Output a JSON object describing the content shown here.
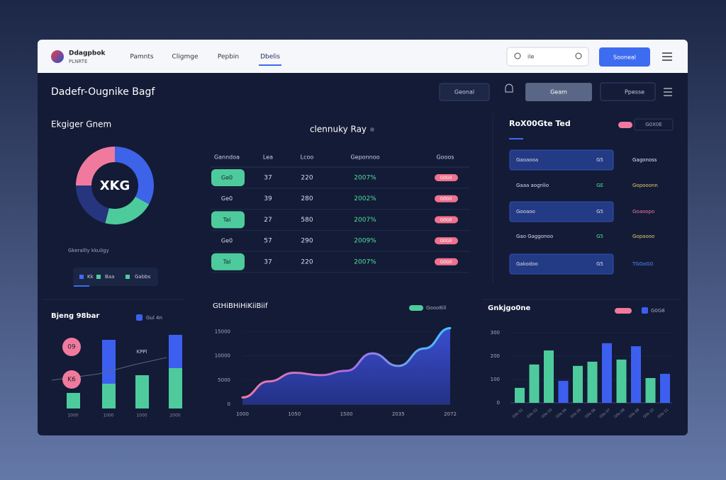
{
  "header": {
    "brand": "Ddagpbok",
    "brand_sub": "PLNRTE",
    "nav": [
      "Pamnts",
      "Cligmge",
      "Pepbin",
      "Dbelis"
    ],
    "active_nav": 3,
    "search": "ile",
    "button": "Sooneal"
  },
  "toolbar": {
    "title": "Dadefr-Ougnike Bagf",
    "buttons": [
      "Geonal",
      "Geam",
      "Ppesse"
    ]
  },
  "donut": {
    "title": "Ekgiger Gnem",
    "center": "XKG",
    "values": [
      33,
      21,
      21,
      25
    ],
    "colors": [
      "#3d63e8",
      "#4ecb9c",
      "#26357e",
      "#f07a9e"
    ],
    "note": "Gkerallly kkuligy",
    "tabs": [
      "Kk",
      "Baa",
      "Gabbs"
    ]
  },
  "table": {
    "title": "clennuky Ray",
    "columns": [
      "Ganndoa",
      "Lea",
      "Lcoo",
      "Geponnoo",
      "Gooos"
    ],
    "rows": [
      [
        "Ge0",
        "37",
        "220",
        "2007%",
        "G0G0"
      ],
      [
        "Ge0",
        "39",
        "280",
        "2002%",
        "G0G0"
      ],
      [
        "Tal",
        "27",
        "580",
        "2007%",
        "G0G0"
      ],
      [
        "Ge0",
        "57",
        "290",
        "2009%",
        "G0G0"
      ],
      [
        "Tal",
        "37",
        "220",
        "2007%",
        "G0G0"
      ]
    ]
  },
  "list": {
    "title": "RoX00Gte Ted",
    "legend": "G0X0E",
    "rows": [
      [
        "Gaoaooa",
        "G5",
        "Gagonoss"
      ],
      [
        "Gaaa aognlio",
        "GE",
        "Gopooonn"
      ],
      [
        "Gooaoo",
        "G5",
        "Goaoopo"
      ],
      [
        "Gao Gaggonoo",
        "G5",
        "Gopaooo"
      ],
      [
        "Gakodoo",
        "G5",
        "TGGoG0"
      ]
    ]
  },
  "bar_left": {
    "title": "Bjeng 98bar",
    "categories": [
      "1000",
      "1000",
      "1000",
      "2000"
    ],
    "series": [
      {
        "color": "#4ecb9c",
        "values": [
          22,
          35,
          47,
          57
        ]
      },
      {
        "name": "Gul 4n",
        "color": "#3d5ff0",
        "values": [
          null,
          62,
          null,
          47
        ]
      }
    ],
    "annotations": [
      "09",
      "K6",
      "KPPl"
    ]
  },
  "area": {
    "title": "GtHiBHiHiKiiBiif",
    "legend": "Gooo8ill",
    "categories": [
      "1000",
      null,
      "1050",
      null,
      "1500",
      null,
      "2035",
      null,
      "2072"
    ],
    "values": [
      1400,
      4700,
      6500,
      6000,
      6900,
      10500,
      7900,
      11500,
      15700
    ],
    "ylim": [
      0,
      16500
    ],
    "yticks": [
      0,
      5000,
      10000,
      15000
    ]
  },
  "bar_right": {
    "title": "Gnkjgo0ne",
    "legend": "G0G8",
    "categories": [
      "G0o 01",
      "G0o 02",
      "G0o 03",
      "G0o 04",
      "G0o 05",
      "G0o 06",
      "G0o 07",
      "G0o 08",
      "G0o 09",
      "G0o 10",
      "G0o 11"
    ],
    "values": [
      64,
      164,
      224,
      94,
      158,
      176,
      255,
      185,
      242,
      106,
      124
    ],
    "colors": [
      "#4ecb9c",
      "#4ecb9c",
      "#4ecb9c",
      "#3d5ff0",
      "#4ecb9c",
      "#4ecb9c",
      "#3d5ff0",
      "#4ecb9c",
      "#3d5ff0",
      "#4ecb9c",
      "#3d5ff0"
    ],
    "ylim": [
      0,
      330
    ],
    "yticks": [
      0,
      100,
      200,
      300
    ]
  }
}
